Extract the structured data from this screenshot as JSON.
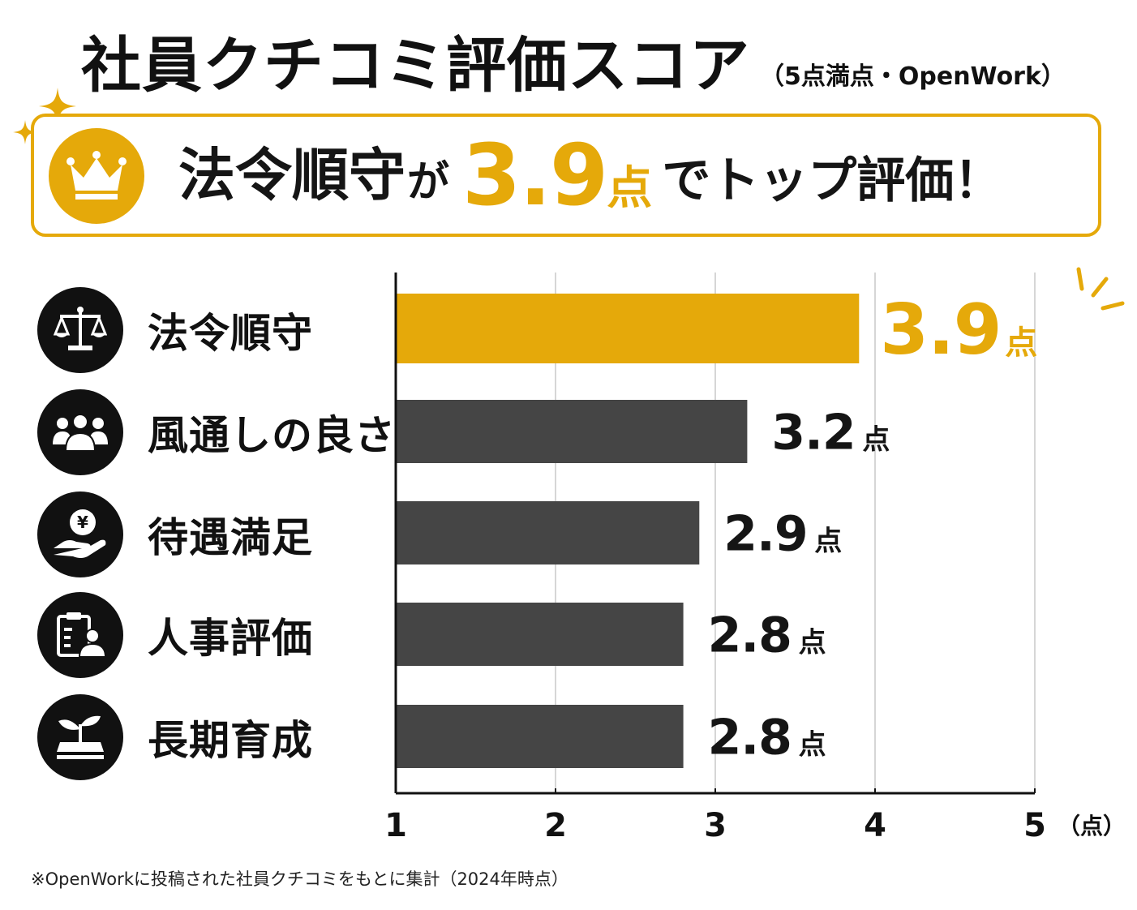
{
  "header": {
    "title": "社員クチコミ評価スコア",
    "note": "（5点満点・OpenWork）"
  },
  "banner": {
    "prefix": "法令順守",
    "particle": "が",
    "score": "3.9",
    "unit": "点",
    "suffix": "でトップ評価！"
  },
  "categories": [
    {
      "label": "法令順守",
      "icon": "scales-icon"
    },
    {
      "label": "風通しの良さ",
      "icon": "people-group-icon"
    },
    {
      "label": "待遇満足",
      "icon": "yen-coin-hand-icon"
    },
    {
      "label": "人事評価",
      "icon": "clipboard-person-icon"
    },
    {
      "label": "長期育成",
      "icon": "sprout-icon"
    }
  ],
  "chart_data": {
    "type": "bar",
    "orientation": "horizontal",
    "categories": [
      "法令順守",
      "風通しの良さ",
      "待遇満足",
      "人事評価",
      "長期育成"
    ],
    "values": [
      3.9,
      3.2,
      2.9,
      2.8,
      2.8
    ],
    "value_labels": [
      "3.9",
      "3.2",
      "2.9",
      "2.8",
      "2.8"
    ],
    "value_unit": "点",
    "xlim": [
      1,
      5
    ],
    "x_ticks": [
      "1",
      "2",
      "3",
      "4",
      "5"
    ],
    "x_unit_label": "（点）",
    "grid": true,
    "colors": {
      "highlight": "#e5a90a",
      "bar": "#454545",
      "axis": "#111111",
      "grid": "#bbbbbb"
    }
  },
  "footnote": "※OpenWorkに投稿された社員クチコミをもとに集計（2024年時点）"
}
